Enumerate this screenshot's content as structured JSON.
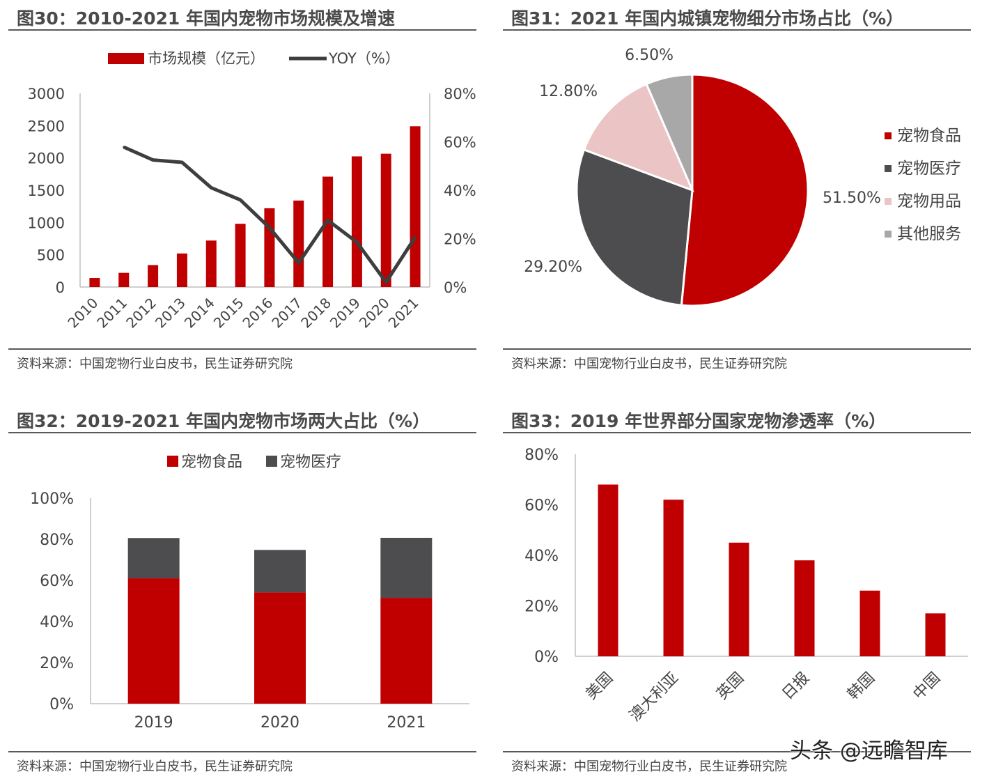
{
  "watermark": "头条 @远瞻智库",
  "colors": {
    "red": "#c00000",
    "dark": "#4d4d4f",
    "pink": "#ebc4c5",
    "gray": "#a8a8a8",
    "line": "#3e3e3e"
  },
  "charts": [
    {
      "title": "图30：2010-2021 年国内宠物市场规模及增速",
      "source": "资料来源：中国宠物行业白皮书，民生证券研究院",
      "chart_data": {
        "type": "bar",
        "categories": [
          "2010",
          "2011",
          "2012",
          "2013",
          "2014",
          "2015",
          "2016",
          "2017",
          "2018",
          "2019",
          "2020",
          "2021"
        ],
        "series": [
          {
            "name": "市场规模（亿元）",
            "type": "bar",
            "axis": "left",
            "values": [
              140,
              220,
              340,
              520,
              720,
              980,
              1220,
              1340,
              1710,
              2024,
              2065,
              2490
            ]
          },
          {
            "name": "YOY（%）",
            "type": "line",
            "axis": "right",
            "values": [
              null,
              57.8,
              52.5,
              51.5,
              41.0,
              36.0,
              24.5,
              10.0,
              27.6,
              18.5,
              2.0,
              20.6
            ]
          }
        ],
        "ylim": [
          0,
          3000
        ],
        "yticks": [
          "0",
          "500",
          "1000",
          "1500",
          "2000",
          "2500",
          "3000"
        ],
        "y2lim": [
          0,
          80
        ],
        "y2ticks": [
          "0%",
          "20%",
          "40%",
          "60%",
          "80%"
        ]
      }
    },
    {
      "title": "图31：2021 年国内城镇宠物细分市场占比（%）",
      "source": "资料来源：中国宠物行业白皮书，民生证券研究院",
      "chart_data": {
        "type": "pie",
        "labels": [
          "宠物食品",
          "宠物医疗",
          "宠物用品",
          "其他服务"
        ],
        "values": [
          51.5,
          29.2,
          12.8,
          6.5
        ],
        "value_labels": [
          "51.50%",
          "29.20%",
          "12.80%",
          "6.50%"
        ]
      }
    },
    {
      "title": "图32：2019-2021 年国内宠物市场两大占比（%）",
      "source": "资料来源：中国宠物行业白皮书，民生证券研究院",
      "chart_data": {
        "type": "bar",
        "stacked": true,
        "categories": [
          "2019",
          "2020",
          "2021"
        ],
        "series": [
          {
            "name": "宠物食品",
            "values": [
              61.0,
              54.1,
              51.5
            ]
          },
          {
            "name": "宠物医疗",
            "values": [
              19.6,
              20.7,
              29.2
            ]
          }
        ],
        "ylim": [
          0,
          100
        ],
        "yticks": [
          "0%",
          "20%",
          "40%",
          "60%",
          "80%",
          "100%"
        ]
      }
    },
    {
      "title": "图33：2019 年世界部分国家宠物渗透率（%）",
      "source": "资料来源：中国宠物行业白皮书，民生证券研究院",
      "chart_data": {
        "type": "bar",
        "categories": [
          "美国",
          "澳大利亚",
          "英国",
          "日报",
          "韩国",
          "中国"
        ],
        "values": [
          68,
          62,
          45,
          38,
          26,
          17
        ],
        "ylim": [
          0,
          80
        ],
        "yticks": [
          "0%",
          "20%",
          "40%",
          "60%",
          "80%"
        ]
      }
    }
  ]
}
